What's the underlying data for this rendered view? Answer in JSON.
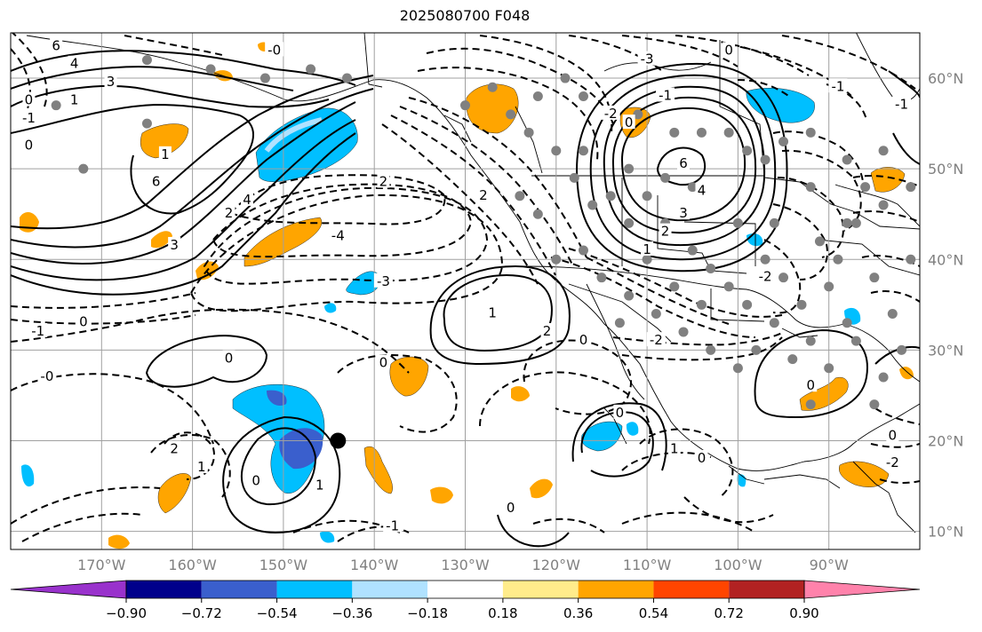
{
  "title": "2025080700 F048",
  "map": {
    "lon_labels": [
      "170°W",
      "160°W",
      "150°W",
      "140°W",
      "130°W",
      "120°W",
      "110°W",
      "100°W",
      "90°W"
    ],
    "lat_labels": [
      "60°N",
      "50°N",
      "40°N",
      "30°N",
      "20°N",
      "10°N"
    ],
    "lon_values": [
      -170,
      -160,
      -150,
      -140,
      -130,
      -120,
      -110,
      -100,
      -90
    ],
    "lat_values": [
      60,
      50,
      40,
      30,
      20,
      10
    ],
    "extent": {
      "lon_min": -180,
      "lon_max": -80,
      "lat_min": 8,
      "lat_max": 65
    },
    "label_color": "#808080",
    "contour_labels": [
      {
        "text": "6",
        "lon": -175,
        "lat": 63.5
      },
      {
        "text": "4",
        "lon": -173,
        "lat": 61.5
      },
      {
        "text": "3",
        "lon": -169,
        "lat": 59.5
      },
      {
        "text": "1",
        "lon": -173,
        "lat": 57.5
      },
      {
        "text": "0",
        "lon": -178,
        "lat": 57.5
      },
      {
        "text": "-1",
        "lon": -178,
        "lat": 55.5
      },
      {
        "text": "0",
        "lon": -178,
        "lat": 52.5
      },
      {
        "text": "-0",
        "lon": -151,
        "lat": 63
      },
      {
        "text": "1",
        "lon": -163,
        "lat": 51.5
      },
      {
        "text": "6",
        "lon": -164,
        "lat": 48.5
      },
      {
        "text": "4",
        "lon": -154,
        "lat": 46.5
      },
      {
        "text": "3",
        "lon": -162,
        "lat": 41.5
      },
      {
        "text": "2",
        "lon": -156,
        "lat": 45
      },
      {
        "text": "2",
        "lon": -139,
        "lat": 48.5
      },
      {
        "text": "2",
        "lon": -128,
        "lat": 47
      },
      {
        "text": "-4",
        "lon": -144,
        "lat": 42.5
      },
      {
        "text": "-3",
        "lon": -139,
        "lat": 37.5
      },
      {
        "text": "0",
        "lon": -172,
        "lat": 33
      },
      {
        "text": "-1",
        "lon": -177,
        "lat": 32
      },
      {
        "text": "-0",
        "lon": -176,
        "lat": 27
      },
      {
        "text": "0",
        "lon": -156,
        "lat": 29
      },
      {
        "text": "1",
        "lon": -127,
        "lat": 34
      },
      {
        "text": "2",
        "lon": -121,
        "lat": 32
      },
      {
        "text": "0",
        "lon": -117,
        "lat": 31
      },
      {
        "text": "0",
        "lon": -139,
        "lat": 28.5
      },
      {
        "text": "2",
        "lon": -162,
        "lat": 19
      },
      {
        "text": "1",
        "lon": -159,
        "lat": 17
      },
      {
        "text": "0",
        "lon": -153,
        "lat": 15.5
      },
      {
        "text": "1",
        "lon": -146,
        "lat": 15
      },
      {
        "text": "-1",
        "lon": -138,
        "lat": 10.5
      },
      {
        "text": "0",
        "lon": -125,
        "lat": 12.5
      },
      {
        "text": "0",
        "lon": -113,
        "lat": 23
      },
      {
        "text": "0",
        "lon": -104,
        "lat": 18
      },
      {
        "text": "1",
        "lon": -107,
        "lat": 19
      },
      {
        "text": "6",
        "lon": -106,
        "lat": 50.5
      },
      {
        "text": "4",
        "lon": -104,
        "lat": 47.5
      },
      {
        "text": "3",
        "lon": -106,
        "lat": 45
      },
      {
        "text": "2",
        "lon": -108,
        "lat": 43
      },
      {
        "text": "1",
        "lon": -110,
        "lat": 41
      },
      {
        "text": "0",
        "lon": -112,
        "lat": 55
      },
      {
        "text": "-1",
        "lon": -108,
        "lat": 58
      },
      {
        "text": "-2",
        "lon": -114,
        "lat": 56
      },
      {
        "text": "-3",
        "lon": -110,
        "lat": 62
      },
      {
        "text": "0",
        "lon": -101,
        "lat": 63
      },
      {
        "text": "-1",
        "lon": -89,
        "lat": 59
      },
      {
        "text": "-1",
        "lon": -82,
        "lat": 57
      },
      {
        "text": "-2",
        "lon": -97,
        "lat": 38
      },
      {
        "text": "-2",
        "lon": -109,
        "lat": 31
      },
      {
        "text": "0",
        "lon": -92,
        "lat": 26
      },
      {
        "text": "0",
        "lon": -83,
        "lat": 20.5
      },
      {
        "text": "-2",
        "lon": -83,
        "lat": 17.5
      }
    ],
    "cyclone_marker": {
      "lon": -144,
      "lat": 20
    }
  },
  "colorbar": {
    "ticks": [
      "−0.90",
      "−0.72",
      "−0.54",
      "−0.36",
      "−0.18",
      "0.18",
      "0.36",
      "0.54",
      "0.72",
      "0.90"
    ],
    "colors": [
      "#9932CC",
      "#00008B",
      "#3A5FCD",
      "#00BFFF",
      "#B0E2FF",
      "#FFFFFF",
      "#FFEC8B",
      "#FFA500",
      "#FF4500",
      "#B22222",
      "#FF82AB"
    ]
  }
}
